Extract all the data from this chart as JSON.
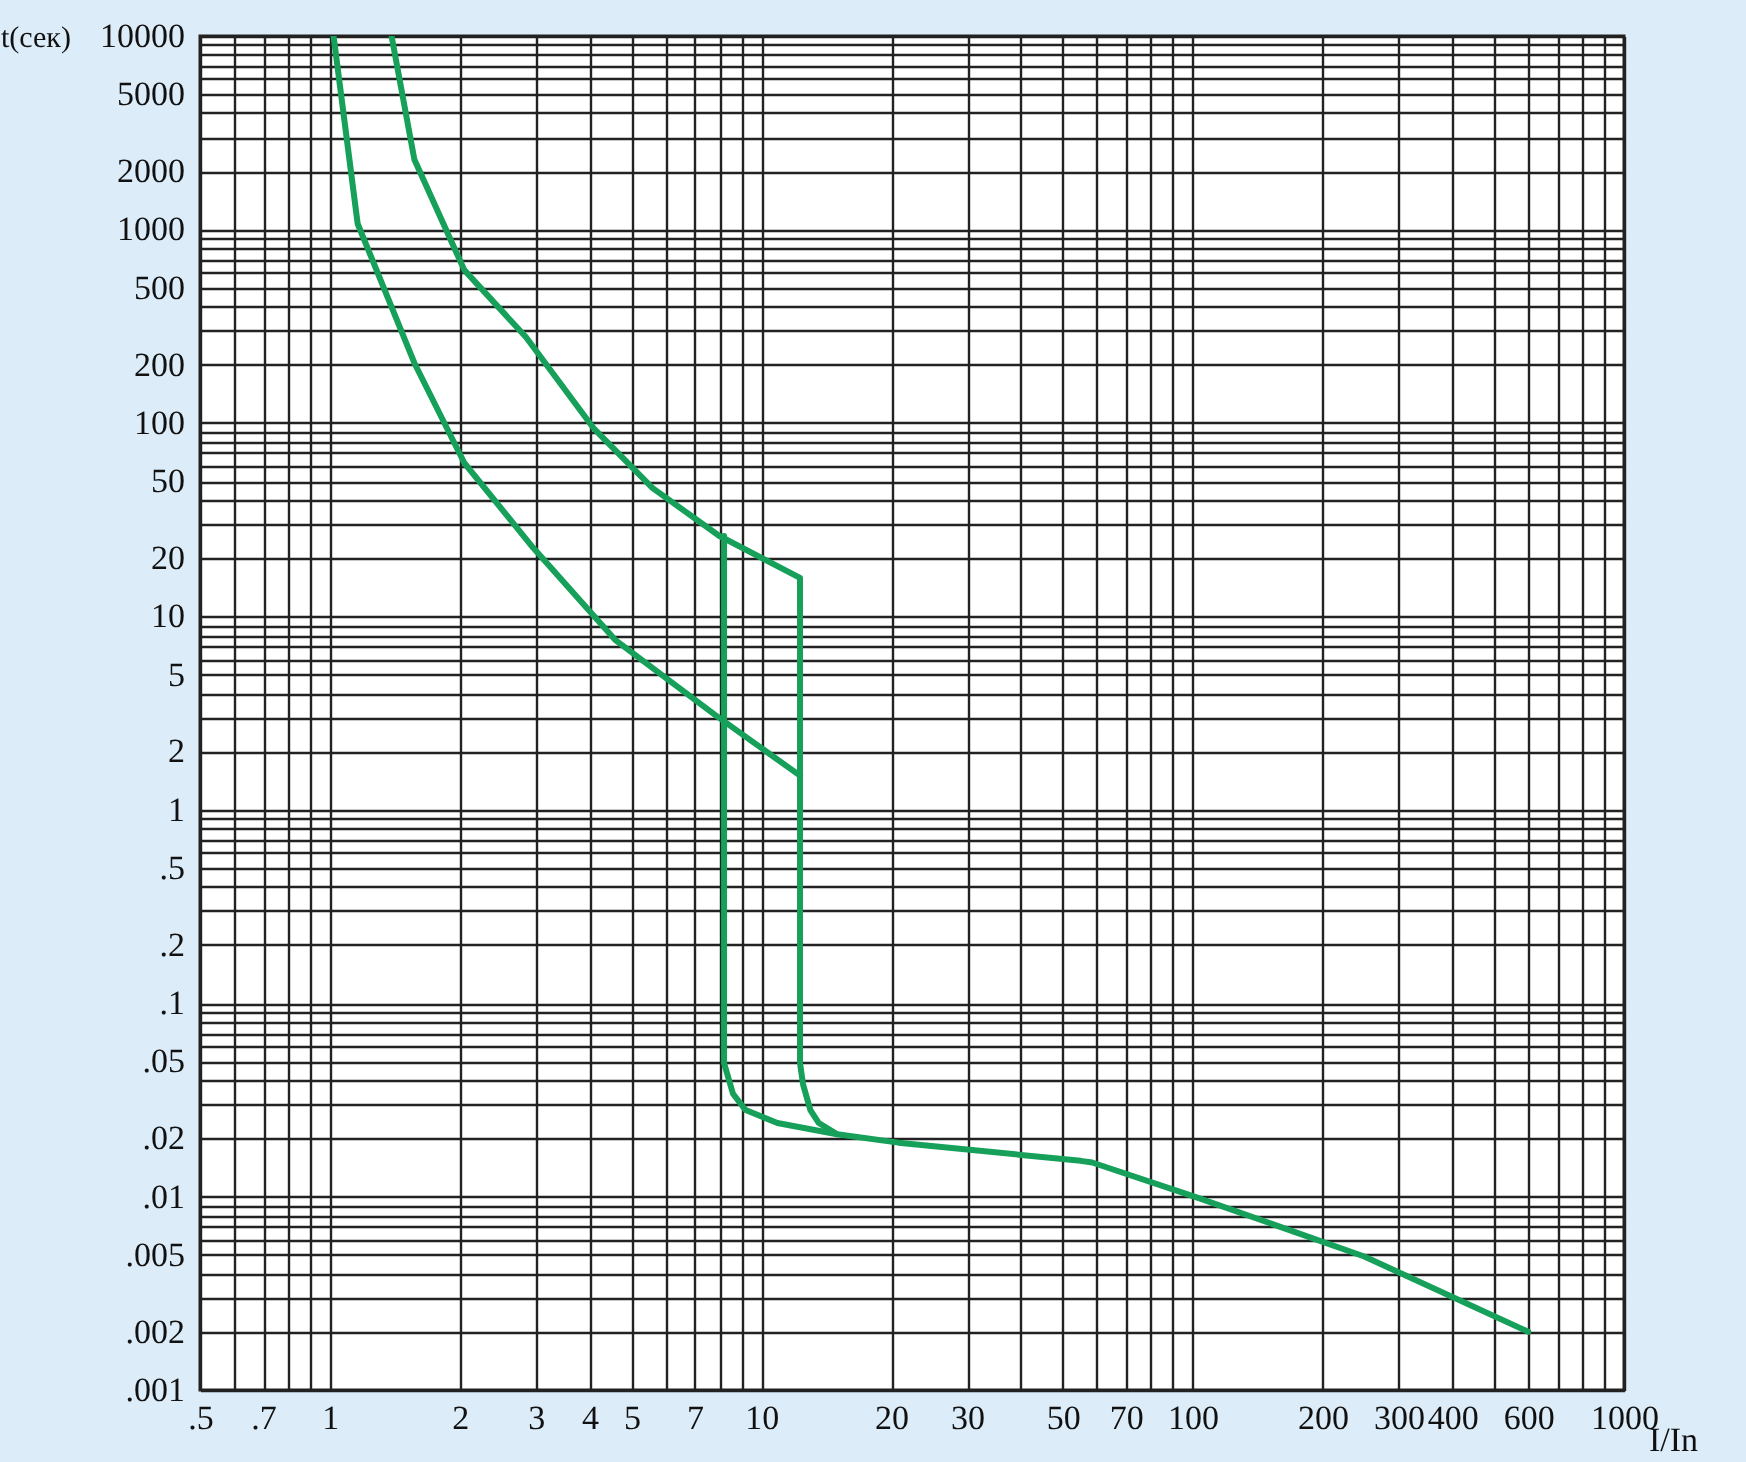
{
  "chart_data": {
    "type": "line",
    "xlabel": "I/In",
    "ylabel": "t(сек)",
    "log": "xy",
    "grid": true,
    "marker": "none",
    "line_style": "solid",
    "xlim": [
      0.5,
      1000
    ],
    "ylim": [
      0.001,
      10000
    ],
    "xticks": [
      {
        "value": 0.5,
        "label": ".5"
      },
      {
        "value": 0.6,
        "label": null
      },
      {
        "value": 0.7,
        "label": ".7"
      },
      {
        "value": 0.8,
        "label": null
      },
      {
        "value": 0.9,
        "label": null
      },
      1,
      2,
      3,
      4,
      5,
      {
        "value": 6,
        "label": null
      },
      7,
      {
        "value": 8,
        "label": null
      },
      {
        "value": 9,
        "label": null
      },
      10,
      20,
      30,
      {
        "value": 40,
        "label": null
      },
      50,
      {
        "value": 60,
        "label": null
      },
      70,
      {
        "value": 80,
        "label": null
      },
      {
        "value": 90,
        "label": null
      },
      100,
      200,
      300,
      400,
      {
        "value": 500,
        "label": null
      },
      600,
      {
        "value": 700,
        "label": null
      },
      {
        "value": 800,
        "label": null
      },
      {
        "value": 900,
        "label": null
      },
      1000
    ],
    "yticks": [
      {
        "value": 0.001,
        "label": ".001"
      },
      {
        "value": 0.002,
        "label": ".002"
      },
      {
        "value": 0.003,
        "label": null
      },
      {
        "value": 0.004,
        "label": null
      },
      {
        "value": 0.005,
        "label": ".005"
      },
      {
        "value": 0.006,
        "label": null
      },
      {
        "value": 0.007,
        "label": null
      },
      {
        "value": 0.008,
        "label": null
      },
      {
        "value": 0.009,
        "label": null
      },
      {
        "value": 0.01,
        "label": ".01"
      },
      {
        "value": 0.02,
        "label": ".02"
      },
      {
        "value": 0.03,
        "label": null
      },
      {
        "value": 0.04,
        "label": null
      },
      {
        "value": 0.05,
        "label": ".05"
      },
      {
        "value": 0.06,
        "label": null
      },
      {
        "value": 0.07,
        "label": null
      },
      {
        "value": 0.08,
        "label": null
      },
      {
        "value": 0.09,
        "label": null
      },
      {
        "value": 0.1,
        "label": ".1"
      },
      {
        "value": 0.2,
        "label": ".2"
      },
      {
        "value": 0.3,
        "label": null
      },
      {
        "value": 0.4,
        "label": null
      },
      {
        "value": 0.5,
        "label": ".5"
      },
      {
        "value": 0.6,
        "label": null
      },
      {
        "value": 0.7,
        "label": null
      },
      {
        "value": 0.8,
        "label": null
      },
      {
        "value": 0.9,
        "label": null
      },
      1,
      2,
      {
        "value": 3,
        "label": null
      },
      {
        "value": 4,
        "label": null
      },
      5,
      {
        "value": 6,
        "label": null
      },
      {
        "value": 7,
        "label": null
      },
      {
        "value": 8,
        "label": null
      },
      {
        "value": 9,
        "label": null
      },
      10,
      20,
      {
        "value": 30,
        "label": null
      },
      {
        "value": 40,
        "label": null
      },
      50,
      {
        "value": 60,
        "label": null
      },
      {
        "value": 70,
        "label": null
      },
      {
        "value": 80,
        "label": null
      },
      {
        "value": 90,
        "label": null
      },
      100,
      200,
      {
        "value": 300,
        "label": null
      },
      {
        "value": 400,
        "label": null
      },
      500,
      {
        "value": 600,
        "label": null
      },
      {
        "value": 700,
        "label": null
      },
      {
        "value": 800,
        "label": null
      },
      {
        "value": 900,
        "label": null
      },
      1000,
      2000,
      {
        "value": 3000,
        "label": null
      },
      {
        "value": 4000,
        "label": null
      },
      5000,
      {
        "value": 6000,
        "label": null
      },
      {
        "value": 7000,
        "label": null
      },
      {
        "value": 8000,
        "label": null
      },
      {
        "value": 9000,
        "label": null
      },
      10000
    ],
    "series": [
      {
        "color": "#16a05a",
        "x": [
          1.02,
          1.16,
          1.57,
          2.05,
          2.96,
          4.6,
          7.8,
          12.3
        ],
        "values": [
          10000,
          1070,
          204,
          62,
          22.6,
          7.5,
          3.1,
          1.5
        ]
      },
      {
        "color": "#16a05a",
        "x": [
          1.39,
          1.57,
          2.05,
          2.85,
          4.1,
          5.6,
          8.0,
          12.3,
          12.3,
          12.5,
          13,
          13.6,
          15,
          20.8,
          55,
          58.5,
          101,
          250,
          600
        ],
        "values": [
          10000,
          2300,
          616,
          277,
          93,
          46,
          26,
          15.8,
          0.049,
          0.038,
          0.028,
          0.024,
          0.021,
          0.019,
          0.0153,
          0.015,
          0.01,
          0.0049,
          0.002
        ]
      },
      {
        "color": "#16a05a",
        "x": [
          8.2,
          8.2,
          8.6,
          9.2,
          10.9,
          15
        ],
        "values": [
          26,
          0.049,
          0.034,
          0.028,
          0.024,
          0.021
        ]
      }
    ]
  }
}
